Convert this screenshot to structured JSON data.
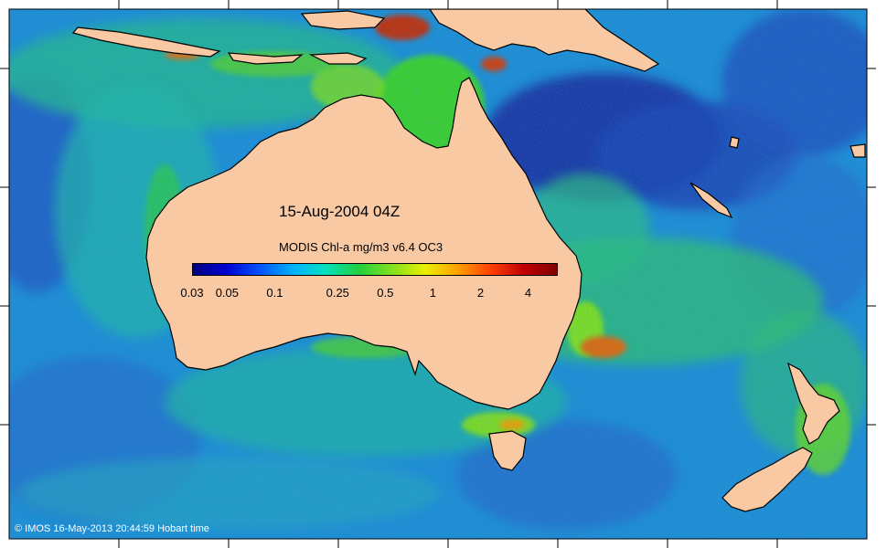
{
  "map": {
    "title": "15-Aug-2004 04Z",
    "colorbar": {
      "title": "MODIS Chl-a mg/m3 v6.4 OC3",
      "ticks": [
        {
          "label": "0.03",
          "value": 0.03
        },
        {
          "label": "0.05",
          "value": 0.05
        },
        {
          "label": "0.1",
          "value": 0.1
        },
        {
          "label": "0.25",
          "value": 0.25
        },
        {
          "label": "0.5",
          "value": 0.5
        },
        {
          "label": "1",
          "value": 1
        },
        {
          "label": "2",
          "value": 2
        },
        {
          "label": "4",
          "value": 4
        }
      ],
      "scale": "log",
      "range": [
        0.03,
        6
      ],
      "colors": [
        "#000080",
        "#0000d0",
        "#0050ff",
        "#00b0ff",
        "#00e0c0",
        "#20d040",
        "#80e020",
        "#e8f000",
        "#ffa000",
        "#ff4000",
        "#c00000",
        "#800000"
      ]
    },
    "credit": "© IMOS 16-May-2013 20:44:59 Hobart time",
    "colors": {
      "land": "#f8c9a3",
      "ocean_open": "#1e90d8",
      "ocean_deep": "#1f3ea8",
      "coastal": "#2bcc3c",
      "bloom": "#d04010"
    },
    "regions": [
      "Australia",
      "New Guinea",
      "Tasmania",
      "New Zealand"
    ]
  }
}
